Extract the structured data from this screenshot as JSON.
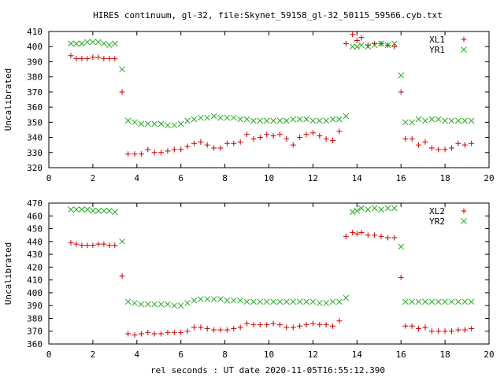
{
  "figure": {
    "title": "HIRES continuum, gl-32, file:Skynet_59158_gl-32_50115_59566.cyb.txt",
    "xlabel": "rel seconds : UT date 2020-11-05T16:55:12.390"
  },
  "colors": {
    "series1": "#cc0000",
    "series2": "#22aa22",
    "frame": "#000000"
  },
  "chart_data": [
    {
      "type": "scatter",
      "title": "",
      "xlabel": "",
      "ylabel": "Uncalibrated",
      "xlim": [
        0,
        20
      ],
      "ylim": [
        320,
        410
      ],
      "xticks": [
        0,
        2,
        4,
        6,
        8,
        10,
        12,
        14,
        16,
        18,
        20
      ],
      "yticks": [
        320,
        330,
        340,
        350,
        360,
        370,
        380,
        390,
        400,
        410
      ],
      "legend_position": "top-right",
      "series": [
        {
          "name": "XL1",
          "marker": "plus",
          "x": [
            1.0,
            1.25,
            1.5,
            1.75,
            2.0,
            2.25,
            2.5,
            2.75,
            3.0,
            3.33,
            3.6,
            3.9,
            4.2,
            4.5,
            4.8,
            5.1,
            5.4,
            5.7,
            6.0,
            6.3,
            6.6,
            6.9,
            7.2,
            7.5,
            7.8,
            8.1,
            8.4,
            8.7,
            9.0,
            9.3,
            9.6,
            9.9,
            10.2,
            10.5,
            10.8,
            11.1,
            11.4,
            11.7,
            12.0,
            12.3,
            12.6,
            12.9,
            13.2,
            13.5,
            13.8,
            14.0,
            14.2,
            14.5,
            14.8,
            15.1,
            15.4,
            15.7,
            16.0,
            16.2,
            16.5,
            16.8,
            17.1,
            17.4,
            17.7,
            18.0,
            18.3,
            18.6,
            18.9,
            19.2
          ],
          "y": [
            394,
            392,
            392,
            392,
            393,
            393,
            392,
            392,
            392,
            370,
            329,
            329,
            329,
            332,
            330,
            330,
            331,
            332,
            332,
            334,
            336,
            337,
            335,
            333,
            333,
            336,
            336,
            337,
            342,
            339,
            340,
            342,
            341,
            342,
            339,
            335,
            340,
            342,
            343,
            341,
            339,
            338,
            344,
            402,
            408,
            404,
            406,
            401,
            402,
            402,
            401,
            400,
            370,
            339,
            339,
            335,
            337,
            333,
            332,
            332,
            333,
            336,
            335,
            336
          ]
        },
        {
          "name": "YR1",
          "marker": "cross",
          "x": [
            1.0,
            1.25,
            1.5,
            1.75,
            2.0,
            2.25,
            2.5,
            2.75,
            3.0,
            3.33,
            3.6,
            3.9,
            4.2,
            4.5,
            4.8,
            5.1,
            5.4,
            5.7,
            6.0,
            6.3,
            6.6,
            6.9,
            7.2,
            7.5,
            7.8,
            8.1,
            8.4,
            8.7,
            9.0,
            9.3,
            9.6,
            9.9,
            10.2,
            10.5,
            10.8,
            11.1,
            11.4,
            11.7,
            12.0,
            12.3,
            12.6,
            12.9,
            13.2,
            13.5,
            13.8,
            14.0,
            14.2,
            14.5,
            14.8,
            15.1,
            15.4,
            15.7,
            16.0,
            16.2,
            16.5,
            16.8,
            17.1,
            17.4,
            17.7,
            18.0,
            18.3,
            18.6,
            18.9,
            19.2
          ],
          "y": [
            402,
            402,
            402,
            403,
            403,
            403,
            402,
            401,
            402,
            385,
            351,
            350,
            349,
            349,
            349,
            349,
            348,
            348,
            349,
            351,
            352,
            353,
            353,
            354,
            353,
            353,
            353,
            352,
            352,
            351,
            351,
            351,
            351,
            351,
            351,
            352,
            352,
            352,
            351,
            351,
            351,
            352,
            352,
            354,
            400,
            400,
            401,
            400,
            401,
            402,
            401,
            402,
            381,
            350,
            350,
            352,
            351,
            352,
            352,
            351,
            351,
            351,
            351,
            351
          ]
        }
      ]
    },
    {
      "type": "scatter",
      "title": "",
      "xlabel": "rel seconds : UT date 2020-11-05T16:55:12.390",
      "ylabel": "Uncalibrated",
      "xlim": [
        0,
        20
      ],
      "ylim": [
        360,
        470
      ],
      "xticks": [
        0,
        2,
        4,
        6,
        8,
        10,
        12,
        14,
        16,
        18,
        20
      ],
      "yticks": [
        360,
        370,
        380,
        390,
        400,
        410,
        420,
        430,
        440,
        450,
        460,
        470
      ],
      "legend_position": "top-right",
      "series": [
        {
          "name": "XL2",
          "marker": "plus",
          "x": [
            1.0,
            1.25,
            1.5,
            1.75,
            2.0,
            2.25,
            2.5,
            2.75,
            3.0,
            3.33,
            3.6,
            3.9,
            4.2,
            4.5,
            4.8,
            5.1,
            5.4,
            5.7,
            6.0,
            6.3,
            6.6,
            6.9,
            7.2,
            7.5,
            7.8,
            8.1,
            8.4,
            8.7,
            9.0,
            9.3,
            9.6,
            9.9,
            10.2,
            10.5,
            10.8,
            11.1,
            11.4,
            11.7,
            12.0,
            12.3,
            12.6,
            12.9,
            13.2,
            13.5,
            13.8,
            14.0,
            14.2,
            14.5,
            14.8,
            15.1,
            15.4,
            15.7,
            16.0,
            16.2,
            16.5,
            16.8,
            17.1,
            17.4,
            17.7,
            18.0,
            18.3,
            18.6,
            18.9,
            19.2
          ],
          "y": [
            439,
            438,
            437,
            437,
            437,
            438,
            438,
            437,
            437,
            413,
            368,
            367,
            368,
            369,
            368,
            368,
            369,
            369,
            369,
            370,
            373,
            373,
            372,
            371,
            371,
            371,
            372,
            373,
            376,
            375,
            375,
            375,
            376,
            375,
            373,
            373,
            374,
            375,
            376,
            375,
            375,
            374,
            378,
            444,
            447,
            446,
            447,
            445,
            445,
            444,
            443,
            443,
            412,
            374,
            374,
            372,
            373,
            370,
            370,
            370,
            370,
            371,
            371,
            372
          ]
        },
        {
          "name": "YR2",
          "marker": "cross",
          "x": [
            1.0,
            1.25,
            1.5,
            1.75,
            2.0,
            2.25,
            2.5,
            2.75,
            3.0,
            3.33,
            3.6,
            3.9,
            4.2,
            4.5,
            4.8,
            5.1,
            5.4,
            5.7,
            6.0,
            6.3,
            6.6,
            6.9,
            7.2,
            7.5,
            7.8,
            8.1,
            8.4,
            8.7,
            9.0,
            9.3,
            9.6,
            9.9,
            10.2,
            10.5,
            10.8,
            11.1,
            11.4,
            11.7,
            12.0,
            12.3,
            12.6,
            12.9,
            13.2,
            13.5,
            13.8,
            14.0,
            14.2,
            14.5,
            14.8,
            15.1,
            15.4,
            15.7,
            16.0,
            16.2,
            16.5,
            16.8,
            17.1,
            17.4,
            17.7,
            18.0,
            18.3,
            18.6,
            18.9,
            19.2
          ],
          "y": [
            465,
            465,
            465,
            465,
            464,
            464,
            464,
            464,
            463,
            440,
            393,
            392,
            391,
            391,
            391,
            391,
            391,
            390,
            390,
            392,
            394,
            395,
            395,
            395,
            395,
            394,
            394,
            394,
            393,
            393,
            393,
            393,
            393,
            393,
            393,
            393,
            393,
            393,
            393,
            392,
            392,
            393,
            393,
            396,
            463,
            464,
            466,
            465,
            466,
            465,
            466,
            466,
            436,
            393,
            393,
            393,
            393,
            393,
            393,
            393,
            393,
            393,
            393,
            393
          ]
        }
      ]
    }
  ]
}
